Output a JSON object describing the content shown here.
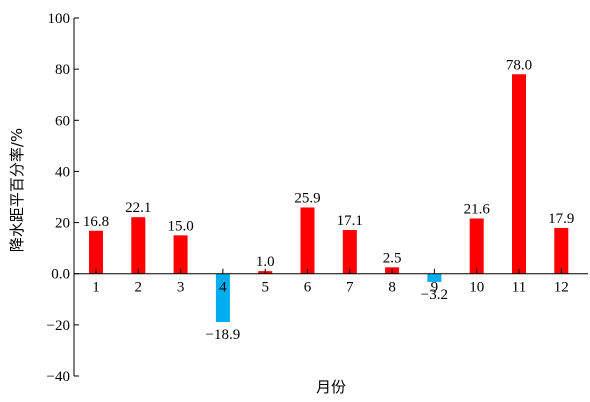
{
  "chart_data": {
    "type": "bar",
    "categories": [
      "1",
      "2",
      "3",
      "4",
      "5",
      "6",
      "7",
      "8",
      "9",
      "10",
      "11",
      "12"
    ],
    "values": [
      16.8,
      22.1,
      15.0,
      -18.9,
      1.0,
      25.9,
      17.1,
      2.5,
      -3.2,
      21.6,
      78.0,
      17.9
    ],
    "value_labels": [
      "16.8",
      "22.1",
      "15.0",
      "−18.9",
      "1.0",
      "25.9",
      "17.1",
      "2.5",
      "−3.2",
      "21.6",
      "78.0",
      "17.9"
    ],
    "xlabel": "月份",
    "ylabel": "降水距平百分率/%",
    "ylim": [
      -40,
      100
    ],
    "yticks": [
      100,
      80,
      60,
      40,
      20,
      0,
      -20,
      -40
    ],
    "ytick_labels": [
      "100",
      "80",
      "60",
      "40",
      "20",
      "0.0",
      "−20",
      "−40"
    ],
    "grid": false,
    "colors": {
      "positive": "#ff0000",
      "negative": "#00aeef",
      "axis": "#000000"
    }
  }
}
